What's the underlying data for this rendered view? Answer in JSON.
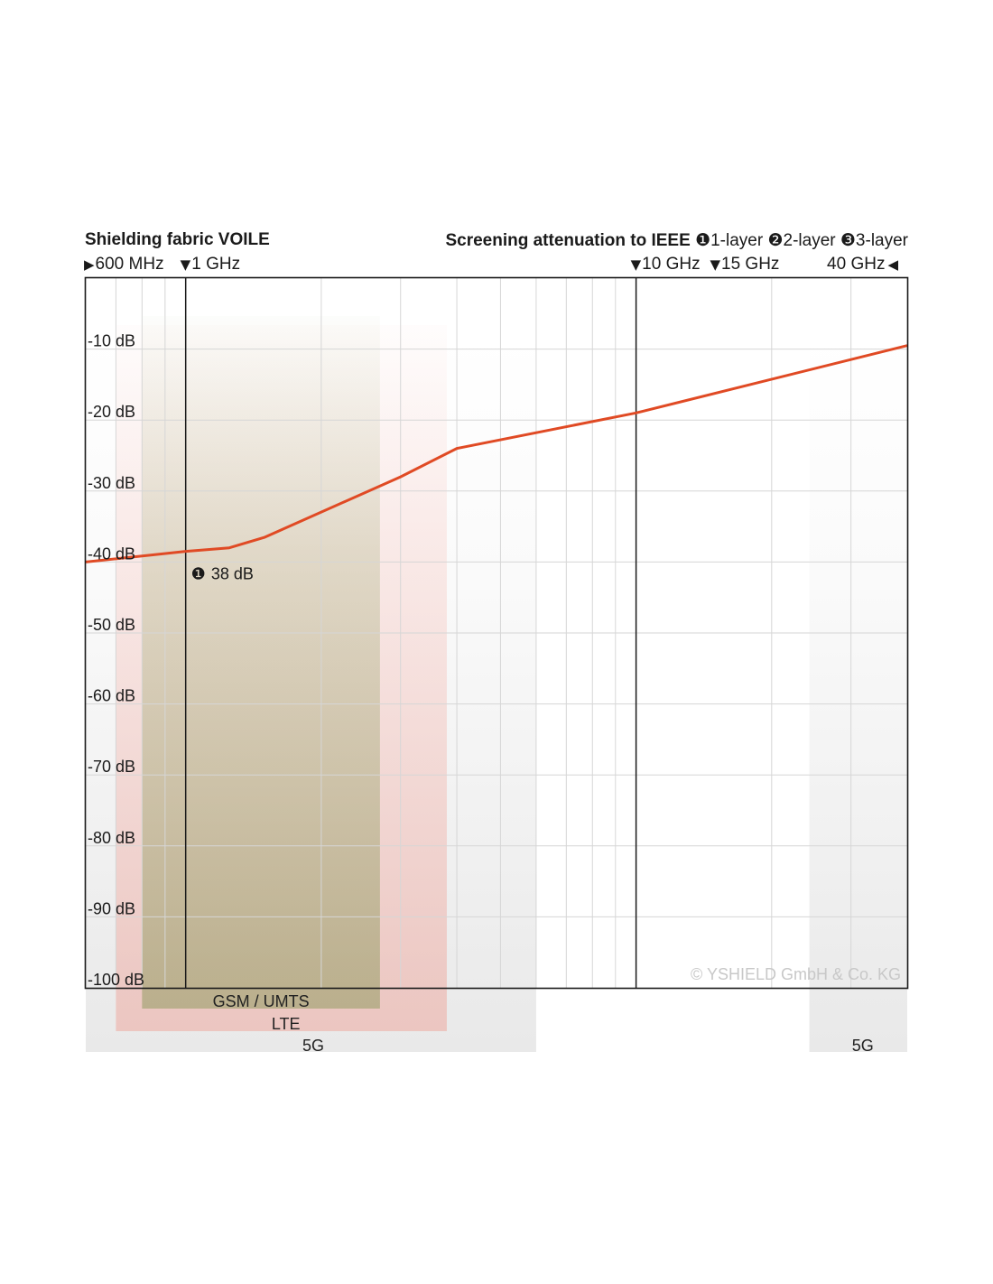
{
  "header": {
    "product_title": "Shielding fabric VOILE",
    "measurement_title": "Screening attenuation to IEEE",
    "layers": [
      {
        "marker": "❶",
        "label": "1-layer"
      },
      {
        "marker": "❷",
        "label": "2-layer"
      },
      {
        "marker": "❸",
        "label": "3-layer"
      }
    ]
  },
  "chart_data": {
    "type": "line",
    "x_scale": "log",
    "xlim_ghz": [
      0.6,
      40
    ],
    "ylim_db": [
      -100,
      0
    ],
    "grid": true,
    "y_ticks": [
      {
        "value": -10,
        "label": "-10 dB"
      },
      {
        "value": -20,
        "label": "-20 dB"
      },
      {
        "value": -30,
        "label": "-30 dB"
      },
      {
        "value": -40,
        "label": "-40 dB"
      },
      {
        "value": -50,
        "label": "-50 dB"
      },
      {
        "value": -60,
        "label": "-60 dB"
      },
      {
        "value": -70,
        "label": "-70 dB"
      },
      {
        "value": -80,
        "label": "-80 dB"
      },
      {
        "value": -90,
        "label": "-90 dB"
      },
      {
        "value": -100,
        "label": "-100 dB"
      }
    ],
    "freq_markers": [
      {
        "value": 0.6,
        "label": "600 MHz",
        "symbol": "◀",
        "type": "edge-left"
      },
      {
        "value": 1,
        "label": "1 GHz",
        "symbol": "▼",
        "type": "line"
      },
      {
        "value": 10,
        "label": "10 GHz",
        "symbol": "▼",
        "type": "line"
      },
      {
        "value": 15,
        "label": "15 GHz",
        "symbol": "▼",
        "type": "tick"
      },
      {
        "value": 40,
        "label": "40 GHz",
        "symbol": "◀",
        "type": "edge-right"
      }
    ],
    "series": [
      {
        "color": "#e04a24",
        "x": [
          0.6,
          1,
          1.25,
          1.5,
          3,
          4,
          10,
          40
        ],
        "y": [
          -40,
          -38.5,
          -38,
          -36.5,
          -28,
          -24,
          -19,
          -9.5
        ]
      }
    ],
    "annotation": {
      "marker": "❶",
      "label": "38 dB",
      "x": 1,
      "y": -38.5
    },
    "bands": [
      {
        "label": "GSM / UMTS",
        "from": 0.8,
        "to": 2.7,
        "color": "#6f8a3c"
      },
      {
        "label": "LTE",
        "from": 0.7,
        "to": 3.8,
        "color": "#f08a7c"
      },
      {
        "label": "5G",
        "from": 0.6,
        "to": 6,
        "color": "#bdbdbd"
      },
      {
        "label": "5G",
        "from": 24.25,
        "to": 40,
        "color": "#bdbdbd"
      }
    ],
    "watermark": "© YSHIELD GmbH & Co. KG"
  }
}
